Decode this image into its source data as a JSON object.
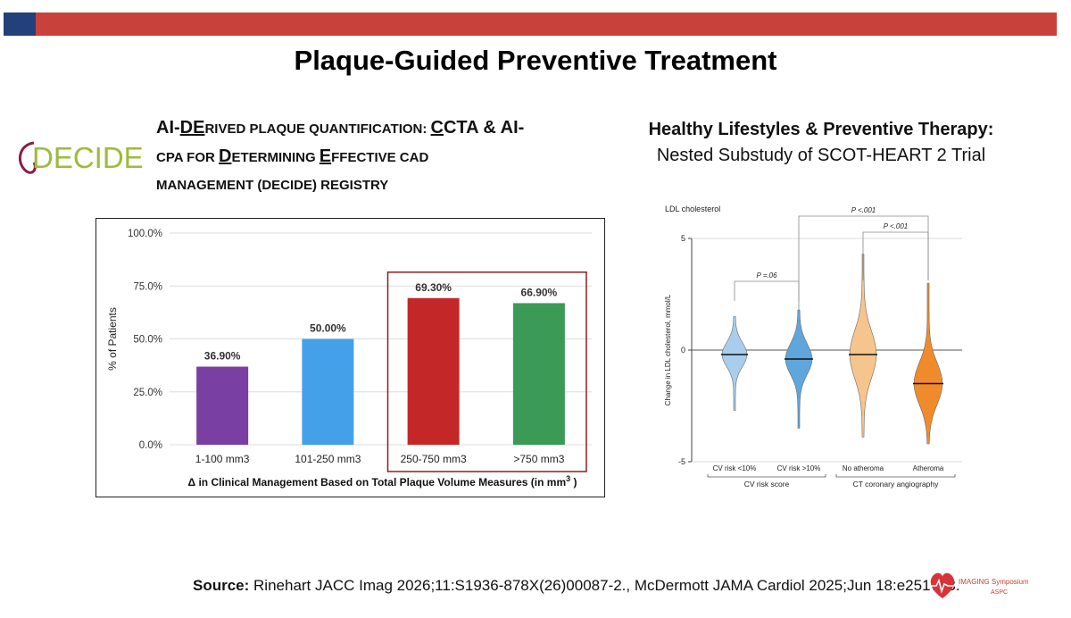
{
  "slide": {
    "title": "Plaque-Guided Preventive Treatment",
    "decide": {
      "logo_text": "DECIDE",
      "heading_line1_a": "AI-",
      "heading_line1_b": "DE",
      "heading_line1_c": "RIVED PLAQUE QUANTIFICATION: ",
      "heading_line1_d": "C",
      "heading_line1_e": "CTA & AI-",
      "heading_line2_a": "CPA FOR ",
      "heading_line2_b": "D",
      "heading_line2_c": "ETERMINING ",
      "heading_line2_d": "E",
      "heading_line2_e": "FFECTIVE CAD",
      "heading_line3": "MANAGEMENT (DECIDE) REGISTRY"
    },
    "right": {
      "heading_line1": "Healthy Lifestyles & Preventive Therapy:",
      "heading_line2": "Nested Substudy of SCOT-HEART 2 Trial"
    },
    "source_label": "Source:",
    "source_text": " Rinehart JACC Imag 2026;11:S1936-878X(26)00087-2., McDermott JAMA Cardiol 2025;Jun 18:e251763.",
    "symposium_logo_text": "IMAGING Symposium",
    "symposium_logo_sub": "ASPC"
  },
  "chart_data": [
    {
      "type": "bar",
      "categories": [
        "1-100 mm3",
        "101-250 mm3",
        "250-750 mm3",
        ">750 mm3"
      ],
      "values": [
        36.9,
        50.0,
        69.3,
        66.9
      ],
      "value_labels": [
        "36.90%",
        "50.00%",
        "69.30%",
        "66.90%"
      ],
      "colors": [
        "#7a3fa3",
        "#45a0ea",
        "#c42727",
        "#3b9a55"
      ],
      "ylabel": "% of Patients",
      "xlabel_main": "Δ in Clinical Management Based on Total Plaque Volume Measures (in mm",
      "xlabel_sup": "3",
      "xlabel_end": " )",
      "ylim": [
        0,
        100
      ],
      "yticks": [
        0,
        25,
        50,
        75,
        100
      ],
      "ytick_labels": [
        "0.0%",
        "25.0%",
        "50.0%",
        "75.0%",
        "100.0%"
      ],
      "grid": true,
      "highlight_categories": [
        "250-750 mm3",
        ">750 mm3"
      ]
    },
    {
      "type": "violin",
      "title": "LDL cholesterol",
      "ylabel": "Change in LDL cholesterol, mmol/L",
      "ylim": [
        -5,
        5
      ],
      "yticks": [
        -5,
        0,
        5
      ],
      "ytick_labels": [
        "-5",
        "0",
        "5"
      ],
      "categories": [
        "CV risk <10%",
        "CV risk >10%",
        "No atheroma",
        "Atheroma"
      ],
      "colors": [
        "#a9cdec",
        "#5fa6dc",
        "#f6c48d",
        "#f08b2c"
      ],
      "medians": [
        -0.2,
        -0.4,
        -0.2,
        -1.5
      ],
      "ranges": [
        [
          -2.7,
          1.5
        ],
        [
          -3.5,
          1.8
        ],
        [
          -3.9,
          4.3
        ],
        [
          -4.2,
          3.0
        ]
      ],
      "groups": [
        {
          "label": "CV risk score",
          "categories": [
            "CV risk <10%",
            "CV risk >10%"
          ]
        },
        {
          "label": "CT coronary angiography",
          "categories": [
            "No atheroma",
            "Atheroma"
          ]
        }
      ],
      "annotations": [
        {
          "text": "P =.06",
          "between": [
            "CV risk <10%",
            "CV risk >10%"
          ]
        },
        {
          "text": "P <.001",
          "between": [
            "CV risk >10%",
            "Atheroma"
          ]
        },
        {
          "text": "P <.001",
          "between": [
            "No atheroma",
            "Atheroma"
          ]
        }
      ]
    }
  ]
}
